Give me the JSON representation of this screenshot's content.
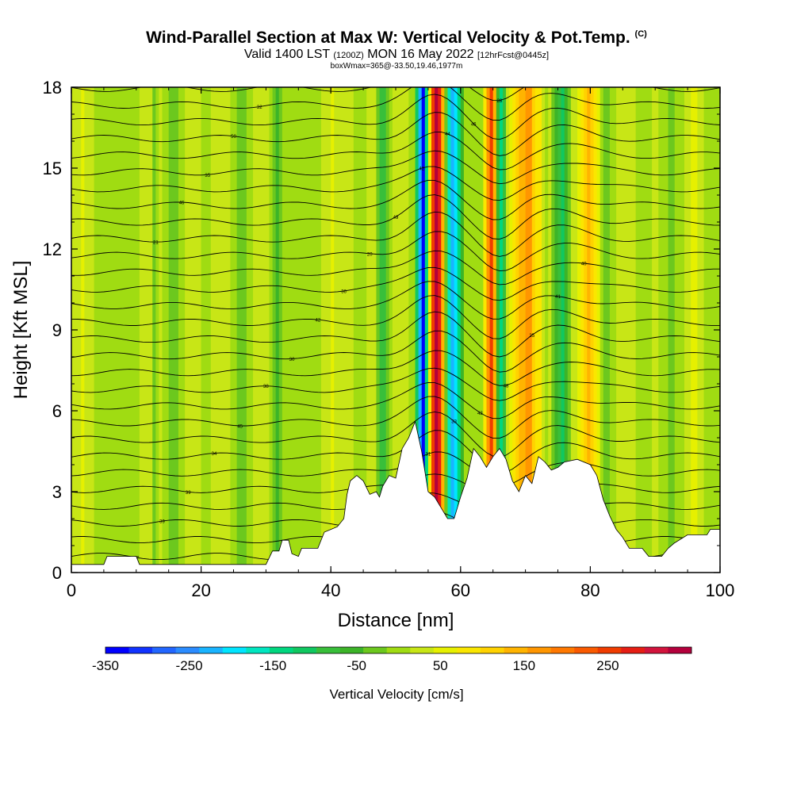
{
  "header": {
    "title": "Wind-Parallel Section at Max W: Vertical Velocity & Pot.Temp.",
    "copyright": "(C)",
    "valid_prefix": "Valid 1400 LST",
    "valid_utc": "(1200Z)",
    "valid_date": "MON 16 May 2022",
    "forecast": "[12hrFcst@0445z]",
    "box_info": "boxWmax=365@-33.50,19.46,1977m"
  },
  "chart_data": {
    "type": "heatmap",
    "title": "Wind-Parallel Section at Max W: Vertical Velocity & Pot.Temp.",
    "xlabel": "Distance [nm]",
    "ylabel": "Height [Kft MSL]",
    "xlim": [
      0,
      100
    ],
    "ylim": [
      0,
      18
    ],
    "xticks": [
      0,
      20,
      40,
      60,
      80,
      100
    ],
    "yticks": [
      0,
      3,
      6,
      9,
      12,
      15,
      18
    ],
    "colorbar": {
      "title": "Vertical Velocity [cm/s]",
      "tick_labels": [
        "-350",
        "-250",
        "-150",
        "-50",
        "50",
        "150",
        "250"
      ],
      "tick_values": [
        -350,
        -250,
        -150,
        -50,
        50,
        150,
        250
      ],
      "range": [
        -350,
        350
      ],
      "colors": [
        "#0000ff",
        "#1133ff",
        "#2266ff",
        "#2b8cff",
        "#19b4ff",
        "#00e5ff",
        "#00e6c0",
        "#00d77f",
        "#10c860",
        "#38bf3a",
        "#3cb428",
        "#6cc81e",
        "#a0dc12",
        "#c8e616",
        "#e6f000",
        "#fae600",
        "#ffd200",
        "#ffb400",
        "#ff9600",
        "#ff7800",
        "#fa5a00",
        "#f03c00",
        "#e61e14",
        "#d2143c",
        "#b4003c"
      ]
    },
    "terrain_kft": [
      {
        "x": 0,
        "h": 0.3
      },
      {
        "x": 5,
        "h": 0.3
      },
      {
        "x": 5.5,
        "h": 0.6
      },
      {
        "x": 10,
        "h": 0.6
      },
      {
        "x": 10.5,
        "h": 0.3
      },
      {
        "x": 30,
        "h": 0.3
      },
      {
        "x": 31,
        "h": 0.8
      },
      {
        "x": 32,
        "h": 0.8
      },
      {
        "x": 32.5,
        "h": 1.2
      },
      {
        "x": 33.5,
        "h": 1.2
      },
      {
        "x": 34,
        "h": 0.7
      },
      {
        "x": 35,
        "h": 0.6
      },
      {
        "x": 35.5,
        "h": 0.9
      },
      {
        "x": 38,
        "h": 0.9
      },
      {
        "x": 39,
        "h": 1.5
      },
      {
        "x": 40,
        "h": 1.6
      },
      {
        "x": 41,
        "h": 1.7
      },
      {
        "x": 42,
        "h": 2.0
      },
      {
        "x": 42.5,
        "h": 2.9
      },
      {
        "x": 43,
        "h": 3.4
      },
      {
        "x": 44,
        "h": 3.6
      },
      {
        "x": 45,
        "h": 3.4
      },
      {
        "x": 46,
        "h": 2.9
      },
      {
        "x": 47,
        "h": 3.0
      },
      {
        "x": 47.5,
        "h": 2.8
      },
      {
        "x": 48,
        "h": 3.2
      },
      {
        "x": 49,
        "h": 3.6
      },
      {
        "x": 50,
        "h": 3.5
      },
      {
        "x": 51,
        "h": 4.6
      },
      {
        "x": 52,
        "h": 5.0
      },
      {
        "x": 53,
        "h": 5.6
      },
      {
        "x": 54,
        "h": 4.5
      },
      {
        "x": 55,
        "h": 3.0
      },
      {
        "x": 56,
        "h": 2.8
      },
      {
        "x": 57,
        "h": 2.4
      },
      {
        "x": 58,
        "h": 2.0
      },
      {
        "x": 59,
        "h": 2.0
      },
      {
        "x": 60,
        "h": 2.8
      },
      {
        "x": 61,
        "h": 3.5
      },
      {
        "x": 62,
        "h": 4.6
      },
      {
        "x": 63,
        "h": 4.3
      },
      {
        "x": 64,
        "h": 3.9
      },
      {
        "x": 65,
        "h": 4.3
      },
      {
        "x": 66,
        "h": 4.6
      },
      {
        "x": 67,
        "h": 4.2
      },
      {
        "x": 68,
        "h": 3.4
      },
      {
        "x": 69,
        "h": 3.0
      },
      {
        "x": 70,
        "h": 3.6
      },
      {
        "x": 71,
        "h": 3.3
      },
      {
        "x": 72,
        "h": 4.3
      },
      {
        "x": 73,
        "h": 4.1
      },
      {
        "x": 74,
        "h": 3.8
      },
      {
        "x": 75,
        "h": 3.9
      },
      {
        "x": 76,
        "h": 4.1
      },
      {
        "x": 78,
        "h": 4.2
      },
      {
        "x": 80,
        "h": 4.0
      },
      {
        "x": 81,
        "h": 3.6
      },
      {
        "x": 82,
        "h": 2.7
      },
      {
        "x": 83,
        "h": 2.1
      },
      {
        "x": 84,
        "h": 1.6
      },
      {
        "x": 85,
        "h": 1.3
      },
      {
        "x": 86,
        "h": 0.9
      },
      {
        "x": 88,
        "h": 0.9
      },
      {
        "x": 89,
        "h": 0.6
      },
      {
        "x": 91,
        "h": 0.6
      },
      {
        "x": 92,
        "h": 0.9
      },
      {
        "x": 93,
        "h": 1.1
      },
      {
        "x": 95,
        "h": 1.4
      },
      {
        "x": 98,
        "h": 1.4
      },
      {
        "x": 98.5,
        "h": 1.6
      },
      {
        "x": 100,
        "h": 1.6
      }
    ],
    "updraft_bands": [
      {
        "x0": 54.5,
        "x1": 58.0,
        "w": 320
      },
      {
        "x0": 53.0,
        "x1": 55.5,
        "w": -300
      },
      {
        "x0": 57.0,
        "x1": 60.5,
        "w": -250
      },
      {
        "x0": 63.5,
        "x1": 66.5,
        "w": 290
      },
      {
        "x0": 65.0,
        "x1": 67.0,
        "w": -280
      },
      {
        "x0": 68.0,
        "x1": 73.0,
        "w": 180
      },
      {
        "x0": 74.0,
        "x1": 77.0,
        "w": -120
      },
      {
        "x0": 78.0,
        "x1": 82.0,
        "w": 120
      },
      {
        "x0": 47.0,
        "x1": 49.0,
        "w": -120
      },
      {
        "x0": 42.0,
        "x1": 44.0,
        "w": 60
      },
      {
        "x0": 12.0,
        "x1": 13.5,
        "w": -60
      },
      {
        "x0": 30.5,
        "x1": 32.5,
        "w": -60
      }
    ],
    "isentrope_labels": [
      "47",
      "44",
      "39",
      "41",
      "39",
      "31",
      "34",
      "33",
      "45",
      "43",
      "38",
      "48",
      "30",
      "25",
      "42",
      "41",
      "36",
      "40",
      "20",
      "21",
      "49",
      "46",
      "42",
      "35",
      "44",
      "50",
      "46",
      "32",
      "28"
    ]
  }
}
